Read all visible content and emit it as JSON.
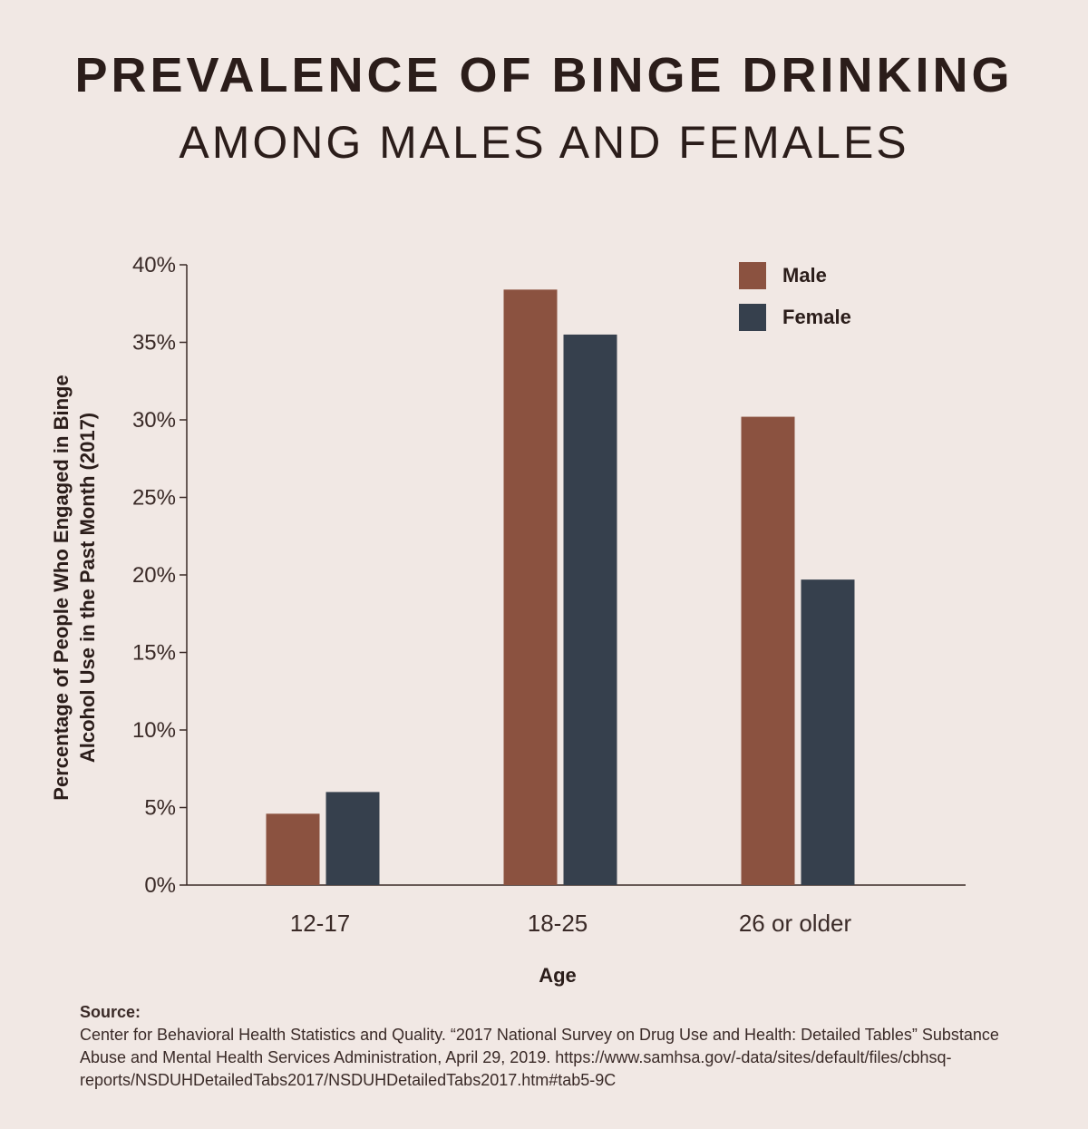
{
  "header": {
    "title": "PREVALENCE OF BINGE DRINKING",
    "subtitle": "AMONG MALES AND FEMALES"
  },
  "chart_data": {
    "type": "bar",
    "categories": [
      "12-17",
      "18-25",
      "26 or older"
    ],
    "series": [
      {
        "name": "Male",
        "color": "#8b5240",
        "values": [
          4.6,
          38.4,
          30.2
        ]
      },
      {
        "name": "Female",
        "color": "#36404d",
        "values": [
          6.0,
          35.5,
          19.7
        ]
      }
    ],
    "xlabel": "Age",
    "ylabel_line1": "Percentage of People Who Engaged in Binge",
    "ylabel_line2": "Alcohol Use in the Past Month (2017)",
    "ylim": [
      0,
      40
    ],
    "yticks": [
      0,
      5,
      10,
      15,
      20,
      25,
      30,
      35,
      40
    ],
    "ytick_labels": [
      "0%",
      "5%",
      "10%",
      "15%",
      "20%",
      "25%",
      "30%",
      "35%",
      "40%"
    ],
    "grid": false,
    "legend_position": "top-right"
  },
  "source": {
    "heading": "Source:",
    "text": "Center for Behavioral Health Statistics and Quality. “2017 National Survey on Drug Use and Health: Detailed Tables” Substance Abuse and Mental Health Services Administration, April 29, 2019. https://www.samhsa.gov/-data/sites/default/files/cbhsq-reports/NSDUHDetailedTabs2017/NSDUHDetailedTabs2017.htm#tab5-9C"
  }
}
